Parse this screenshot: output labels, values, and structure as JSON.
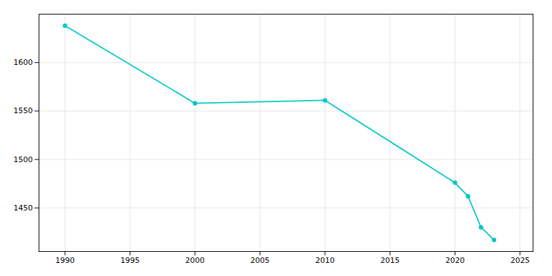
{
  "chart_data": {
    "type": "line",
    "x": [
      1990,
      2000,
      2010,
      2020,
      2021,
      2022,
      2023
    ],
    "values": [
      1638,
      1558,
      1561,
      1476,
      1462,
      1430,
      1417
    ],
    "color": "#00C8C8",
    "marker": "circle",
    "xlim": [
      1988,
      2026
    ],
    "ylim": [
      1405,
      1650
    ],
    "xticks": [
      1990,
      1995,
      2000,
      2005,
      2010,
      2015,
      2020,
      2025
    ],
    "yticks": [
      1450,
      1500,
      1550,
      1600
    ],
    "grid": true
  }
}
